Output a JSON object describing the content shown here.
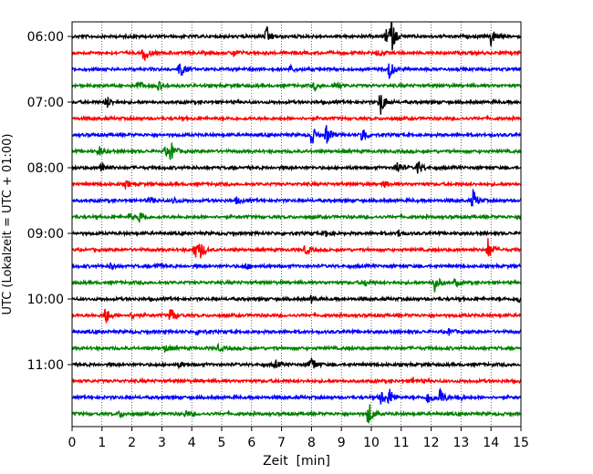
{
  "chart_data": {
    "type": "line",
    "title": "",
    "xlabel": "Zeit  [min]",
    "ylabel": "UTC (Lokalzeit = UTC + 01:00)",
    "xlim": [
      0,
      15
    ],
    "x_ticks": [
      0,
      1,
      2,
      3,
      4,
      5,
      6,
      7,
      8,
      9,
      10,
      11,
      12,
      13,
      14,
      15
    ],
    "x_tick_labels": [
      "0",
      "1",
      "2",
      "3",
      "4",
      "5",
      "6",
      "7",
      "8",
      "9",
      "10",
      "11",
      "12",
      "13",
      "14",
      "15"
    ],
    "y_tick_labels": [
      "06:00",
      "07:00",
      "08:00",
      "09:00",
      "10:00",
      "11:00"
    ],
    "y_tick_rows": [
      0,
      4,
      8,
      12,
      16,
      20
    ],
    "vertical_grid": "dotted",
    "trace_colors": [
      "#000000",
      "#ff0000",
      "#0000ff",
      "#008000"
    ],
    "rows_per_hour": 4,
    "minutes_per_row": 15,
    "traces": [
      {
        "start": "06:00",
        "events": [
          [
            6.5,
            0.9
          ],
          [
            10.5,
            0.6
          ],
          [
            10.65,
            1.6
          ],
          [
            14.0,
            0.9
          ]
        ]
      },
      {
        "start": "06:15",
        "events": [
          [
            2.4,
            0.9
          ],
          [
            5.4,
            0.35
          ],
          [
            10.2,
            0.3
          ]
        ]
      },
      {
        "start": "06:30",
        "events": [
          [
            3.6,
            0.8
          ],
          [
            10.6,
            0.9
          ],
          [
            7.3,
            0.3
          ]
        ]
      },
      {
        "start": "06:45",
        "events": [
          [
            2.2,
            0.45
          ],
          [
            2.9,
            0.4
          ],
          [
            8.1,
            0.4
          ],
          [
            8.8,
            0.35
          ]
        ]
      },
      {
        "start": "07:00",
        "events": [
          [
            1.15,
            0.6
          ],
          [
            10.3,
            1.3
          ]
        ]
      },
      {
        "start": "07:15",
        "events": []
      },
      {
        "start": "07:30",
        "events": [
          [
            8.0,
            1.0
          ],
          [
            8.5,
            0.9
          ],
          [
            9.7,
            0.9
          ]
        ]
      },
      {
        "start": "07:45",
        "events": [
          [
            0.9,
            0.45
          ],
          [
            3.3,
            0.9
          ],
          [
            3.1,
            0.35
          ]
        ]
      },
      {
        "start": "08:00",
        "events": [
          [
            1.0,
            0.7
          ],
          [
            10.85,
            0.7
          ],
          [
            11.55,
            0.7
          ]
        ]
      },
      {
        "start": "08:15",
        "events": [
          [
            1.8,
            0.3
          ],
          [
            10.4,
            0.3
          ]
        ]
      },
      {
        "start": "08:30",
        "events": [
          [
            13.4,
            1.0
          ],
          [
            2.6,
            0.3
          ],
          [
            5.5,
            0.3
          ],
          [
            3.4,
            0.3
          ]
        ]
      },
      {
        "start": "08:45",
        "events": [
          [
            2.25,
            0.6
          ],
          [
            1.9,
            0.3
          ]
        ]
      },
      {
        "start": "09:00",
        "events": [
          [
            8.5,
            0.3
          ],
          [
            10.9,
            0.3
          ]
        ]
      },
      {
        "start": "09:15",
        "events": [
          [
            4.1,
            0.8
          ],
          [
            4.3,
            0.6
          ],
          [
            7.8,
            0.45
          ],
          [
            13.9,
            1.0
          ]
        ]
      },
      {
        "start": "09:30",
        "events": [
          [
            1.3,
            0.3
          ],
          [
            2.8,
            0.3
          ],
          [
            5.8,
            0.3
          ]
        ]
      },
      {
        "start": "09:45",
        "events": [
          [
            12.1,
            0.9
          ],
          [
            9.8,
            0.3
          ],
          [
            12.8,
            0.3
          ]
        ]
      },
      {
        "start": "10:00",
        "events": [
          [
            8.0,
            0.3
          ],
          [
            14.9,
            0.3
          ]
        ]
      },
      {
        "start": "10:15",
        "events": [
          [
            1.1,
            1.0
          ],
          [
            3.3,
            0.8
          ],
          [
            2.0,
            0.3
          ]
        ]
      },
      {
        "start": "10:30",
        "events": [
          [
            4.2,
            0.3
          ],
          [
            12.6,
            0.3
          ]
        ]
      },
      {
        "start": "10:45",
        "events": [
          [
            3.1,
            0.3
          ],
          [
            4.9,
            0.3
          ]
        ]
      },
      {
        "start": "11:00",
        "events": [
          [
            8.0,
            0.8
          ],
          [
            3.6,
            0.3
          ],
          [
            6.8,
            0.3
          ]
        ]
      },
      {
        "start": "11:15",
        "events": [
          [
            11.4,
            0.3
          ]
        ]
      },
      {
        "start": "11:30",
        "events": [
          [
            10.3,
            0.8
          ],
          [
            10.6,
            0.8
          ],
          [
            11.9,
            0.7
          ],
          [
            12.3,
            0.9
          ],
          [
            12.9,
            0.4
          ]
        ]
      },
      {
        "start": "11:45",
        "events": [
          [
            9.9,
            1.2
          ],
          [
            1.6,
            0.3
          ],
          [
            3.8,
            0.3
          ]
        ]
      }
    ]
  }
}
